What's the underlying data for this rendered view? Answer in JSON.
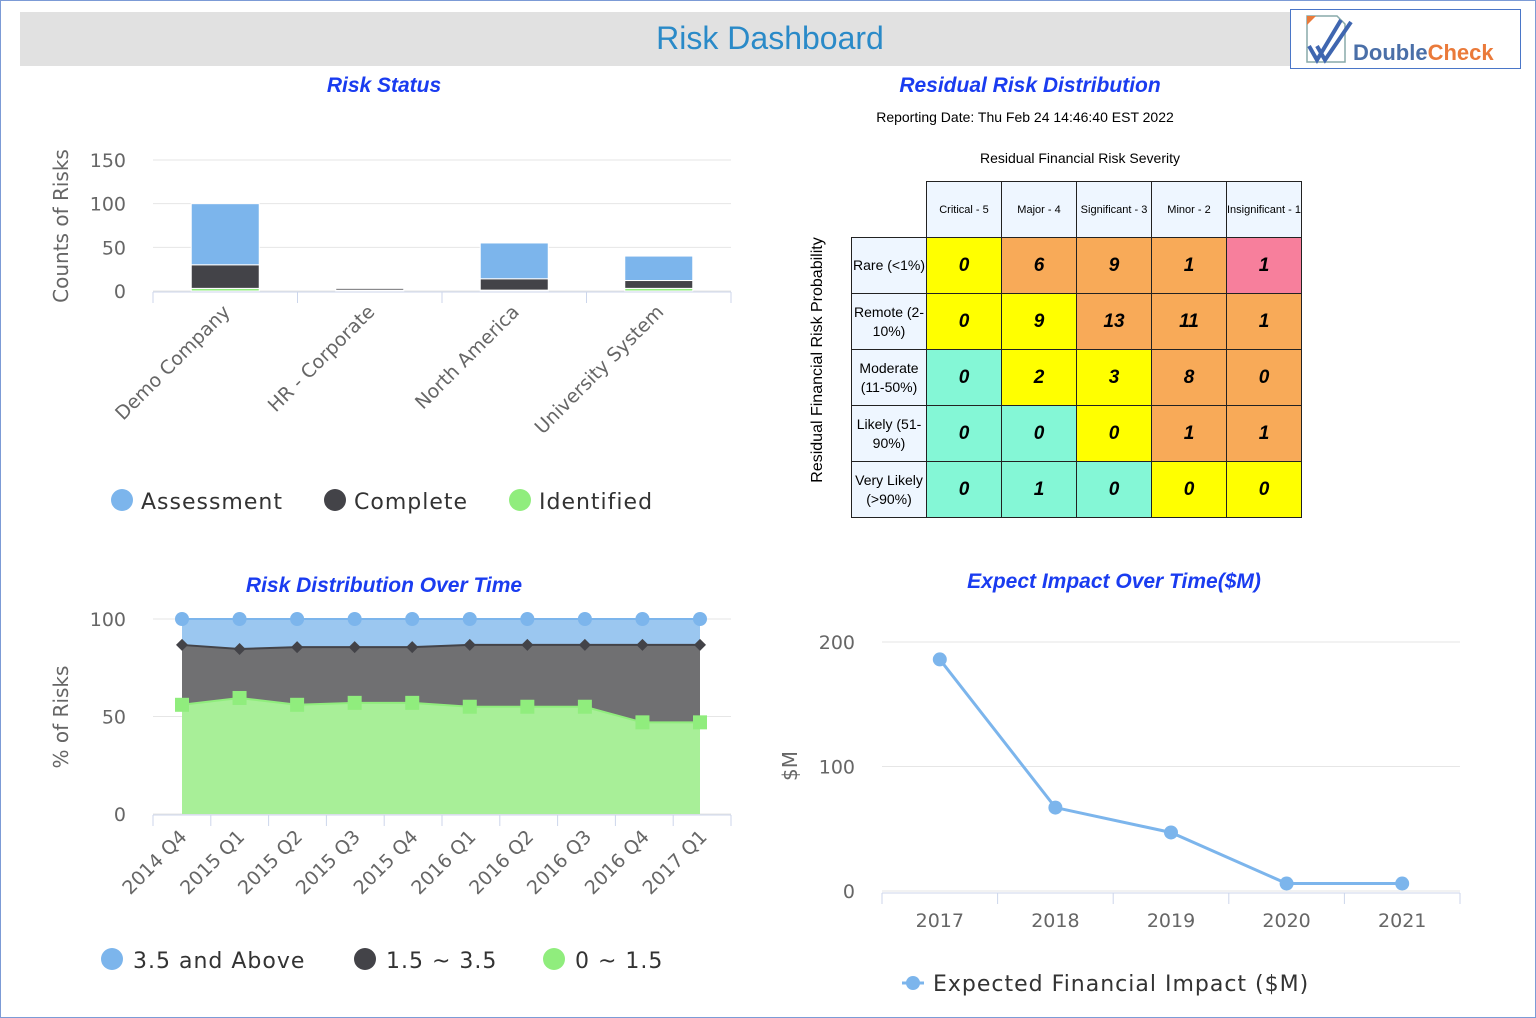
{
  "header": {
    "title": "Risk Dashboard",
    "logo_text": "DoubleCheck",
    "logo_part1": "Double",
    "logo_part2": "Check"
  },
  "colors": {
    "assessment": "#7cb5ec",
    "complete": "#434348",
    "identified": "#90ed7d",
    "heat_yellow": "#ffff00",
    "heat_orange": "#f8aa58",
    "heat_pink": "#f77f9c",
    "heat_teal": "#84f7d6"
  },
  "heatmap": {
    "title": "Residual Risk Distribution",
    "reporting_date": "Reporting Date: Thu Feb 24 14:46:40 EST 2022",
    "severity_label": "Residual Financial Risk Severity",
    "probability_label": "Residual Financial Risk Probability",
    "columns": [
      "Critical - 5",
      "Major - 4",
      "Significant - 3",
      "Minor - 2",
      "Insignificant - 1"
    ],
    "rows": [
      {
        "label": "Rare (<1%)",
        "values": [
          0,
          6,
          9,
          1,
          1
        ],
        "colors": [
          "yellow",
          "orange",
          "orange",
          "orange",
          "pink"
        ]
      },
      {
        "label": "Remote (2-10%)",
        "values": [
          0,
          9,
          13,
          11,
          1
        ],
        "colors": [
          "yellow",
          "yellow",
          "orange",
          "orange",
          "orange"
        ]
      },
      {
        "label": "Moderate (11-50%)",
        "values": [
          0,
          2,
          3,
          8,
          0
        ],
        "colors": [
          "teal",
          "yellow",
          "yellow",
          "orange",
          "orange"
        ]
      },
      {
        "label": "Likely (51-90%)",
        "values": [
          0,
          0,
          0,
          1,
          1
        ],
        "colors": [
          "teal",
          "teal",
          "yellow",
          "orange",
          "orange"
        ]
      },
      {
        "label": "Very Likely (>90%)",
        "values": [
          0,
          1,
          0,
          0,
          0
        ],
        "colors": [
          "teal",
          "teal",
          "teal",
          "yellow",
          "yellow"
        ]
      }
    ]
  },
  "chart_data": [
    {
      "type": "bar",
      "stacked": true,
      "title": "Risk Status",
      "ylabel": "Counts of Risks",
      "xlabel": "",
      "categories": [
        "Demo Company",
        "HR - Corporate",
        "North America",
        "University System"
      ],
      "ylim": [
        0,
        150
      ],
      "yticks": [
        "0",
        "50",
        "100",
        "150"
      ],
      "grid": true,
      "legend": "bottom",
      "series": [
        {
          "name": "Assessment",
          "values": [
            70,
            0,
            41,
            28
          ]
        },
        {
          "name": "Complete",
          "values": [
            27,
            2,
            13,
            9
          ]
        },
        {
          "name": "Identified",
          "values": [
            3,
            1,
            1,
            3
          ]
        }
      ]
    },
    {
      "type": "area",
      "stacked": true,
      "title": "Risk Distribution Over Time",
      "ylabel": "% of Risks",
      "xlabel": "",
      "categories": [
        "2014 Q4",
        "2015 Q1",
        "2015 Q2",
        "2015 Q3",
        "2015 Q4",
        "2016 Q1",
        "2016 Q2",
        "2016 Q3",
        "2016 Q4",
        "2017 Q1"
      ],
      "ylim": [
        0,
        100
      ],
      "yticks": [
        "0",
        "50",
        "100"
      ],
      "grid": true,
      "legend": "bottom",
      "series": [
        {
          "name": "3.5 and Above",
          "values": [
            13.3,
            15.4,
            14.4,
            14.4,
            14.4,
            13.3,
            13.3,
            13.3,
            13.3,
            13.3
          ]
        },
        {
          "name": "1.5 ~ 3.5",
          "values": [
            30.7,
            25.1,
            29.6,
            28.6,
            28.6,
            31.7,
            31.7,
            31.7,
            39.7,
            39.7
          ]
        },
        {
          "name": "0 ~ 1.5",
          "values": [
            56,
            59.5,
            56,
            57,
            57,
            55,
            55,
            55,
            47,
            47
          ]
        }
      ]
    },
    {
      "type": "line",
      "title": "Expect Impact Over Time($M)",
      "ylabel": "$M",
      "xlabel": "",
      "categories": [
        "2017",
        "2018",
        "2019",
        "2020",
        "2021"
      ],
      "ylim": [
        0,
        200
      ],
      "yticks": [
        "0",
        "100",
        "200"
      ],
      "grid": true,
      "legend": "bottom",
      "series": [
        {
          "name": "Expected Financial Impact ($M)",
          "values": [
            186,
            67,
            47,
            6,
            6
          ]
        }
      ]
    }
  ]
}
